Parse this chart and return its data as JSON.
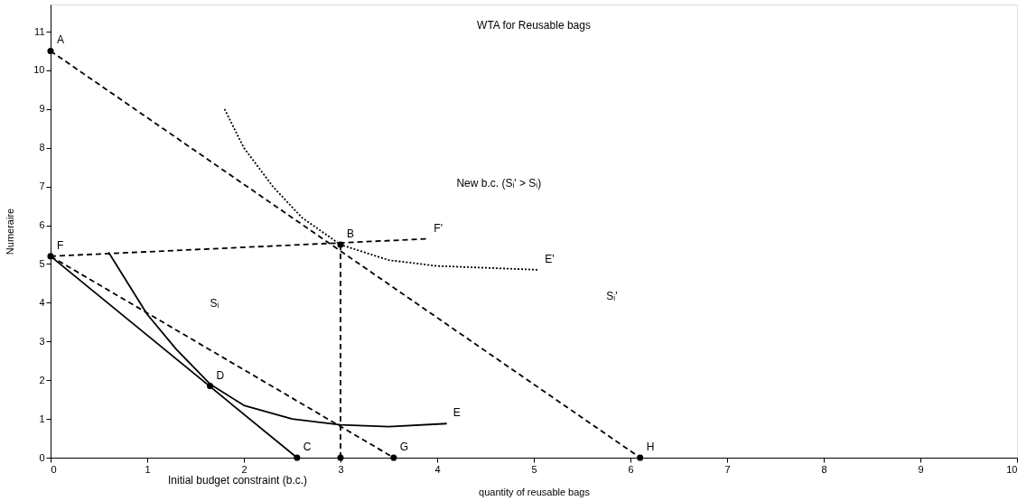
{
  "chart_data": {
    "type": "line",
    "title": "WTA for Reusable bags",
    "xlabel": "quantity of reusable bags",
    "ylabel": "Numeraire",
    "xlim": [
      0,
      10
    ],
    "ylim": [
      0,
      11.7
    ],
    "xticks": [
      0,
      1,
      2,
      3,
      4,
      5,
      6,
      7,
      8,
      9,
      10
    ],
    "yticks": [
      0,
      1,
      2,
      3,
      4,
      5,
      6,
      7,
      8,
      9,
      10,
      11
    ],
    "grid": false,
    "series": [
      {
        "line_style": "dashed",
        "color": "#000000",
        "x": [
          0,
          6.1
        ],
        "values": [
          10.5,
          0
        ]
      },
      {
        "line_style": "dashed",
        "color": "#000000",
        "x": [
          0,
          3.55
        ],
        "values": [
          5.2,
          0
        ]
      },
      {
        "line_style": "dashed",
        "color": "#000000",
        "x": [
          0,
          3.9
        ],
        "values": [
          5.2,
          5.65
        ]
      },
      {
        "line_style": "solid",
        "color": "#000000",
        "x": [
          0,
          2.55
        ],
        "values": [
          5.2,
          0
        ]
      },
      {
        "line_style": "solid",
        "color": "#000000",
        "x": [
          0.6,
          1.0,
          1.3,
          1.65,
          2.0,
          2.5,
          3.0,
          3.5,
          4.1
        ],
        "values": [
          5.3,
          3.7,
          2.8,
          1.9,
          1.35,
          1.0,
          0.85,
          0.8,
          0.88
        ]
      },
      {
        "line_style": "dotted",
        "color": "#000000",
        "x": [
          1.8,
          2.0,
          2.3,
          2.6,
          3.0,
          3.5,
          4.0,
          5.05
        ],
        "values": [
          9.0,
          8.0,
          7.0,
          6.2,
          5.5,
          5.1,
          4.95,
          4.85
        ]
      },
      {
        "line_style": "dashed",
        "color": "#000000",
        "x": [
          3,
          3
        ],
        "values": [
          5.5,
          0
        ]
      },
      {
        "type": "scatter",
        "marker": "circle",
        "color": "#000000",
        "x": [
          0,
          0,
          3,
          1.65,
          2.55,
          3,
          3.55,
          6.1
        ],
        "values": [
          10.5,
          5.2,
          5.5,
          1.85,
          0,
          0,
          0,
          0
        ]
      }
    ],
    "annotations": [
      {
        "text": "A",
        "x": 0,
        "y": 10.5
      },
      {
        "text": "B",
        "x": 3,
        "y": 5.5
      },
      {
        "text": "C",
        "x": 2.55,
        "y": 0
      },
      {
        "text": "D",
        "x": 1.65,
        "y": 1.85
      },
      {
        "text": "E",
        "x": 4.1,
        "y": 0.88
      },
      {
        "text": "E'",
        "x": 5.05,
        "y": 4.85
      },
      {
        "text": "F",
        "x": 0,
        "y": 5.2
      },
      {
        "text": "F'",
        "x": 3.9,
        "y": 5.65
      },
      {
        "text": "G",
        "x": 3.55,
        "y": 0
      },
      {
        "text": "H",
        "x": 6.1,
        "y": 0
      },
      "New b.c. (Sᵢ' > Sᵢ)",
      "Sᵢ",
      "Sᵢ'",
      "Initial budget constraint (b.c.)"
    ]
  }
}
